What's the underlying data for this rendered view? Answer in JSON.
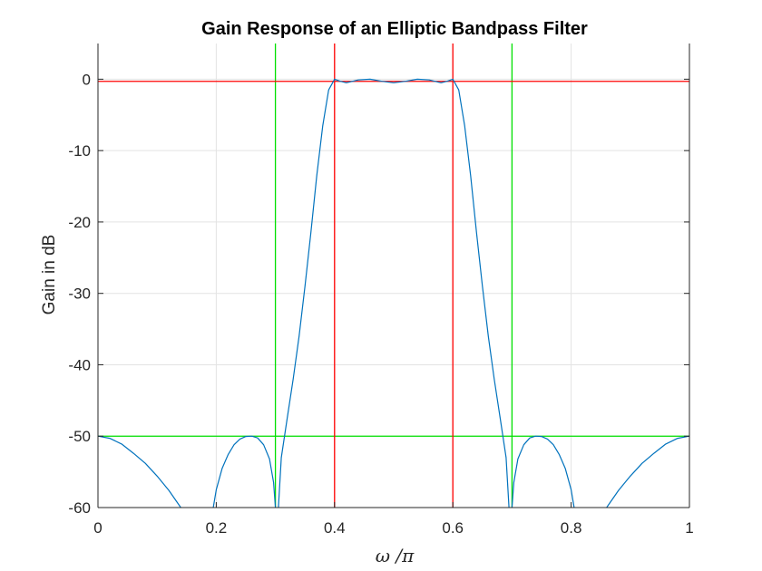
{
  "chart_data": {
    "type": "line",
    "title": "Gain Response of an Elliptic Bandpass Filter",
    "xlabel": "ω /π",
    "ylabel": "Gain in dB",
    "xlim": [
      0,
      1
    ],
    "ylim": [
      -60,
      5
    ],
    "x_ticks": [
      0,
      0.2,
      0.4,
      0.6,
      0.8,
      1
    ],
    "x_tick_labels": [
      "0",
      "0.2",
      "0.4",
      "0.6",
      "0.8",
      "1"
    ],
    "y_ticks": [
      0,
      -10,
      -20,
      -30,
      -40,
      -50,
      -60
    ],
    "y_tick_labels": [
      "0",
      "-10",
      "-20",
      "-30",
      "-40",
      "-50",
      "-60"
    ],
    "grid": true,
    "legend": "none",
    "series": [
      {
        "color": "#0072BD",
        "segments": [
          [
            [
              0,
              -50
            ],
            [
              0.02,
              -50.3
            ],
            [
              0.04,
              -51.1
            ],
            [
              0.06,
              -52.4
            ],
            [
              0.08,
              -53.8
            ],
            [
              0.1,
              -55.6
            ],
            [
              0.12,
              -57.6
            ],
            [
              0.14,
              -60
            ]
          ],
          [
            [
              0.195,
              -60
            ],
            [
              0.2,
              -57.5
            ],
            [
              0.21,
              -54.5
            ],
            [
              0.22,
              -52.6
            ],
            [
              0.23,
              -51.2
            ],
            [
              0.24,
              -50.4
            ],
            [
              0.25,
              -50.05
            ],
            [
              0.26,
              -50
            ],
            [
              0.27,
              -50.25
            ],
            [
              0.28,
              -51.2
            ],
            [
              0.29,
              -53.2
            ],
            [
              0.297,
              -56.5
            ],
            [
              0.3,
              -60
            ]
          ],
          [
            [
              0.305,
              -60
            ],
            [
              0.31,
              -53
            ],
            [
              0.32,
              -47.5
            ],
            [
              0.33,
              -42
            ],
            [
              0.34,
              -36
            ],
            [
              0.35,
              -29
            ],
            [
              0.36,
              -21.5
            ],
            [
              0.37,
              -13.5
            ],
            [
              0.38,
              -6.5
            ],
            [
              0.39,
              -1.5
            ],
            [
              0.4,
              0
            ],
            [
              0.41,
              -0.3
            ],
            [
              0.42,
              -0.5
            ],
            [
              0.44,
              -0.1
            ],
            [
              0.46,
              0
            ],
            [
              0.48,
              -0.3
            ],
            [
              0.5,
              -0.5
            ],
            [
              0.52,
              -0.3
            ],
            [
              0.54,
              0
            ],
            [
              0.56,
              -0.1
            ],
            [
              0.58,
              -0.5
            ],
            [
              0.59,
              -0.3
            ],
            [
              0.6,
              0
            ],
            [
              0.61,
              -1.5
            ],
            [
              0.62,
              -6.5
            ],
            [
              0.63,
              -13.5
            ],
            [
              0.64,
              -21.5
            ],
            [
              0.65,
              -29
            ],
            [
              0.66,
              -36
            ],
            [
              0.67,
              -42
            ],
            [
              0.68,
              -47.5
            ],
            [
              0.69,
              -53
            ],
            [
              0.695,
              -60
            ]
          ],
          [
            [
              0.7,
              -60
            ],
            [
              0.703,
              -56.5
            ],
            [
              0.71,
              -53.2
            ],
            [
              0.72,
              -51.2
            ],
            [
              0.73,
              -50.25
            ],
            [
              0.74,
              -50
            ],
            [
              0.75,
              -50.05
            ],
            [
              0.76,
              -50.4
            ],
            [
              0.77,
              -51.2
            ],
            [
              0.78,
              -52.6
            ],
            [
              0.79,
              -54.5
            ],
            [
              0.8,
              -57.5
            ],
            [
              0.805,
              -60
            ]
          ],
          [
            [
              0.86,
              -60
            ],
            [
              0.88,
              -57.6
            ],
            [
              0.9,
              -55.6
            ],
            [
              0.92,
              -53.8
            ],
            [
              0.94,
              -52.4
            ],
            [
              0.96,
              -51.1
            ],
            [
              0.98,
              -50.3
            ],
            [
              1.0,
              -50
            ]
          ]
        ]
      }
    ],
    "reference_lines": {
      "red": {
        "color": "#ff0000",
        "horizontal": [
          -0.3
        ],
        "vertical": [
          0.4,
          0.6
        ]
      },
      "green": {
        "color": "#00e000",
        "horizontal": [
          -50
        ],
        "vertical": [
          0.3,
          0.7
        ]
      }
    }
  }
}
